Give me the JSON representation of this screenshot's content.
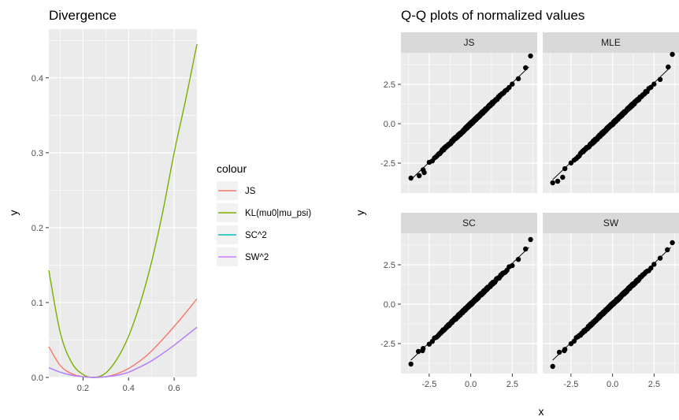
{
  "chart_data": [
    {
      "type": "line",
      "title": "Divergence",
      "xlabel": "",
      "ylabel": "y",
      "xlim": [
        0.05,
        0.7
      ],
      "ylim": [
        0,
        0.465
      ],
      "x_ticks": [
        "0.2",
        "0.4",
        "0.6"
      ],
      "x_tick_values": [
        0.2,
        0.4,
        0.6
      ],
      "y_ticks": [
        "0.0",
        "0.1",
        "0.2",
        "0.3",
        "0.4"
      ],
      "y_tick_values": [
        0.0,
        0.1,
        0.2,
        0.3,
        0.4
      ],
      "grid": true,
      "legend": {
        "title": "colour",
        "position": "right"
      },
      "series": [
        {
          "name": "JS",
          "color": "#F8766D",
          "x": [
            0.05,
            0.1,
            0.15,
            0.2,
            0.25,
            0.3,
            0.35,
            0.4,
            0.45,
            0.5,
            0.55,
            0.6,
            0.65,
            0.7
          ],
          "y": [
            0.041,
            0.016,
            0.005,
            0.001,
            0.0,
            0.001,
            0.005,
            0.012,
            0.022,
            0.035,
            0.051,
            0.068,
            0.086,
            0.105
          ]
        },
        {
          "name": "KL(mu0|mu_psi)",
          "color": "#7CAE00",
          "x": [
            0.05,
            0.1,
            0.15,
            0.2,
            0.25,
            0.3,
            0.35,
            0.4,
            0.45,
            0.5,
            0.55,
            0.6,
            0.65,
            0.7
          ],
          "y": [
            0.143,
            0.06,
            0.02,
            0.004,
            0.0,
            0.006,
            0.025,
            0.055,
            0.098,
            0.153,
            0.221,
            0.3,
            0.37,
            0.445
          ]
        },
        {
          "name": "SC^2",
          "color": "#00BFC4",
          "x": [
            0.05,
            0.1,
            0.15,
            0.2,
            0.25,
            0.3,
            0.35,
            0.4,
            0.45,
            0.5,
            0.55,
            0.6,
            0.65,
            0.7
          ],
          "y": [
            0.013,
            0.007,
            0.003,
            0.001,
            0.0,
            0.001,
            0.003,
            0.007,
            0.014,
            0.022,
            0.032,
            0.043,
            0.055,
            0.067
          ]
        },
        {
          "name": "SW^2",
          "color": "#C77CFF",
          "x": [
            0.05,
            0.1,
            0.15,
            0.2,
            0.25,
            0.3,
            0.35,
            0.4,
            0.45,
            0.5,
            0.55,
            0.6,
            0.65,
            0.7
          ],
          "y": [
            0.013,
            0.007,
            0.003,
            0.001,
            0.0,
            0.001,
            0.003,
            0.007,
            0.014,
            0.022,
            0.032,
            0.043,
            0.055,
            0.067
          ]
        }
      ]
    },
    {
      "type": "scatter",
      "title": "Q-Q plots of normalized values",
      "xlabel": "x",
      "ylabel": "y",
      "xlim": [
        -4.2,
        4.0
      ],
      "ylim": [
        -4.4,
        4.5
      ],
      "x_ticks": [
        "-2.5",
        "0.0",
        "2.5"
      ],
      "x_tick_values": [
        -2.5,
        0.0,
        2.5
      ],
      "y_ticks": [
        "-2.5",
        "0.0",
        "2.5"
      ],
      "y_tick_values": [
        -2.5,
        0.0,
        2.5
      ],
      "grid": true,
      "facets": [
        {
          "name": "JS",
          "tail_points": [
            [
              -3.6,
              -3.45
            ],
            [
              -3.1,
              -3.3
            ],
            [
              -2.8,
              -3.1
            ],
            [
              3.3,
              3.55
            ],
            [
              3.6,
              4.3
            ]
          ],
          "range": [
            -3.3,
            3.2
          ]
        },
        {
          "name": "MLE",
          "tail_points": [
            [
              -3.6,
              -3.75
            ],
            [
              -3.3,
              -3.65
            ],
            [
              -3.0,
              -3.4
            ],
            [
              3.35,
              3.6
            ],
            [
              3.6,
              4.4
            ]
          ],
          "range": [
            -3.3,
            3.2
          ]
        },
        {
          "name": "SC",
          "tail_points": [
            [
              -3.6,
              -3.8
            ],
            [
              -3.15,
              -3.0
            ],
            [
              -2.9,
              -2.95
            ],
            [
              3.3,
              3.5
            ],
            [
              3.6,
              4.1
            ]
          ],
          "range": [
            -3.3,
            3.2
          ]
        },
        {
          "name": "SW",
          "tail_points": [
            [
              -3.6,
              -3.95
            ],
            [
              -3.2,
              -3.05
            ],
            [
              -2.9,
              -2.95
            ],
            [
              3.3,
              3.45
            ],
            [
              3.6,
              3.9
            ]
          ],
          "range": [
            -3.3,
            3.2
          ]
        }
      ]
    }
  ]
}
